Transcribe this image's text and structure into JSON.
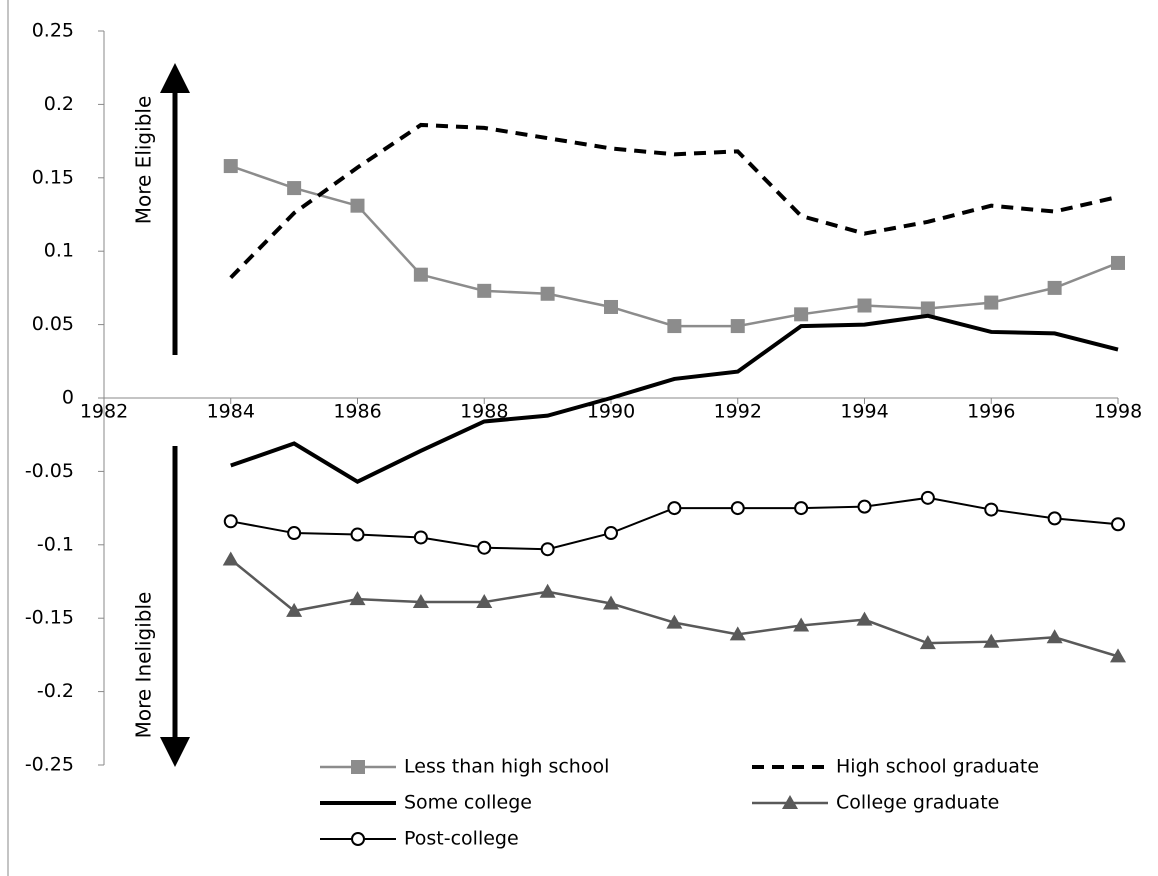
{
  "chart_data": {
    "type": "line",
    "annotations": [
      "More Eligible",
      "More Ineligible"
    ],
    "x": [
      1984,
      1985,
      1986,
      1987,
      1988,
      1989,
      1990,
      1991,
      1992,
      1993,
      1994,
      1995,
      1996,
      1997,
      1998
    ],
    "xlim": [
      1982,
      1998
    ],
    "xticks": [
      1982,
      1984,
      1986,
      1988,
      1990,
      1992,
      1994,
      1996,
      1998
    ],
    "ylim": [
      -0.25,
      0.25
    ],
    "yticks": [
      0.25,
      0.2,
      0.15,
      0.1,
      0.05,
      0,
      -0.05,
      -0.1,
      -0.15,
      -0.2,
      -0.25
    ],
    "grid": false,
    "series": [
      {
        "name": "Less than high school",
        "color": "#8c8c8c",
        "marker": "square",
        "line_style": "solid",
        "values": [
          0.158,
          0.143,
          0.131,
          0.084,
          0.073,
          0.071,
          0.062,
          0.049,
          0.049,
          0.057,
          0.063,
          0.061,
          0.065,
          0.075,
          0.092
        ]
      },
      {
        "name": "High school graduate",
        "color": "#000000",
        "marker": "none",
        "line_style": "dashed",
        "values": [
          0.082,
          0.126,
          0.157,
          0.186,
          0.184,
          0.177,
          0.17,
          0.166,
          0.168,
          0.124,
          0.112,
          0.12,
          0.131,
          0.127,
          0.137
        ]
      },
      {
        "name": "Some college",
        "color": "#000000",
        "marker": "none",
        "line_style": "solid",
        "values": [
          -0.046,
          -0.031,
          -0.057,
          -0.036,
          -0.016,
          -0.012,
          0.0,
          0.013,
          0.018,
          0.049,
          0.05,
          0.056,
          0.045,
          0.044,
          0.033
        ]
      },
      {
        "name": "College graduate",
        "color": "#595959",
        "marker": "triangle",
        "line_style": "solid",
        "values": [
          -0.11,
          -0.145,
          -0.137,
          -0.139,
          -0.139,
          -0.132,
          -0.14,
          -0.153,
          -0.161,
          -0.155,
          -0.151,
          -0.167,
          -0.166,
          -0.163,
          -0.176
        ]
      },
      {
        "name": "Post-college",
        "color": "#000000",
        "marker": "circle",
        "line_style": "solid",
        "values": [
          -0.084,
          -0.092,
          -0.093,
          -0.095,
          -0.102,
          -0.103,
          -0.092,
          -0.075,
          -0.075,
          -0.075,
          -0.074,
          -0.068,
          -0.076,
          -0.082,
          -0.086
        ]
      }
    ]
  }
}
